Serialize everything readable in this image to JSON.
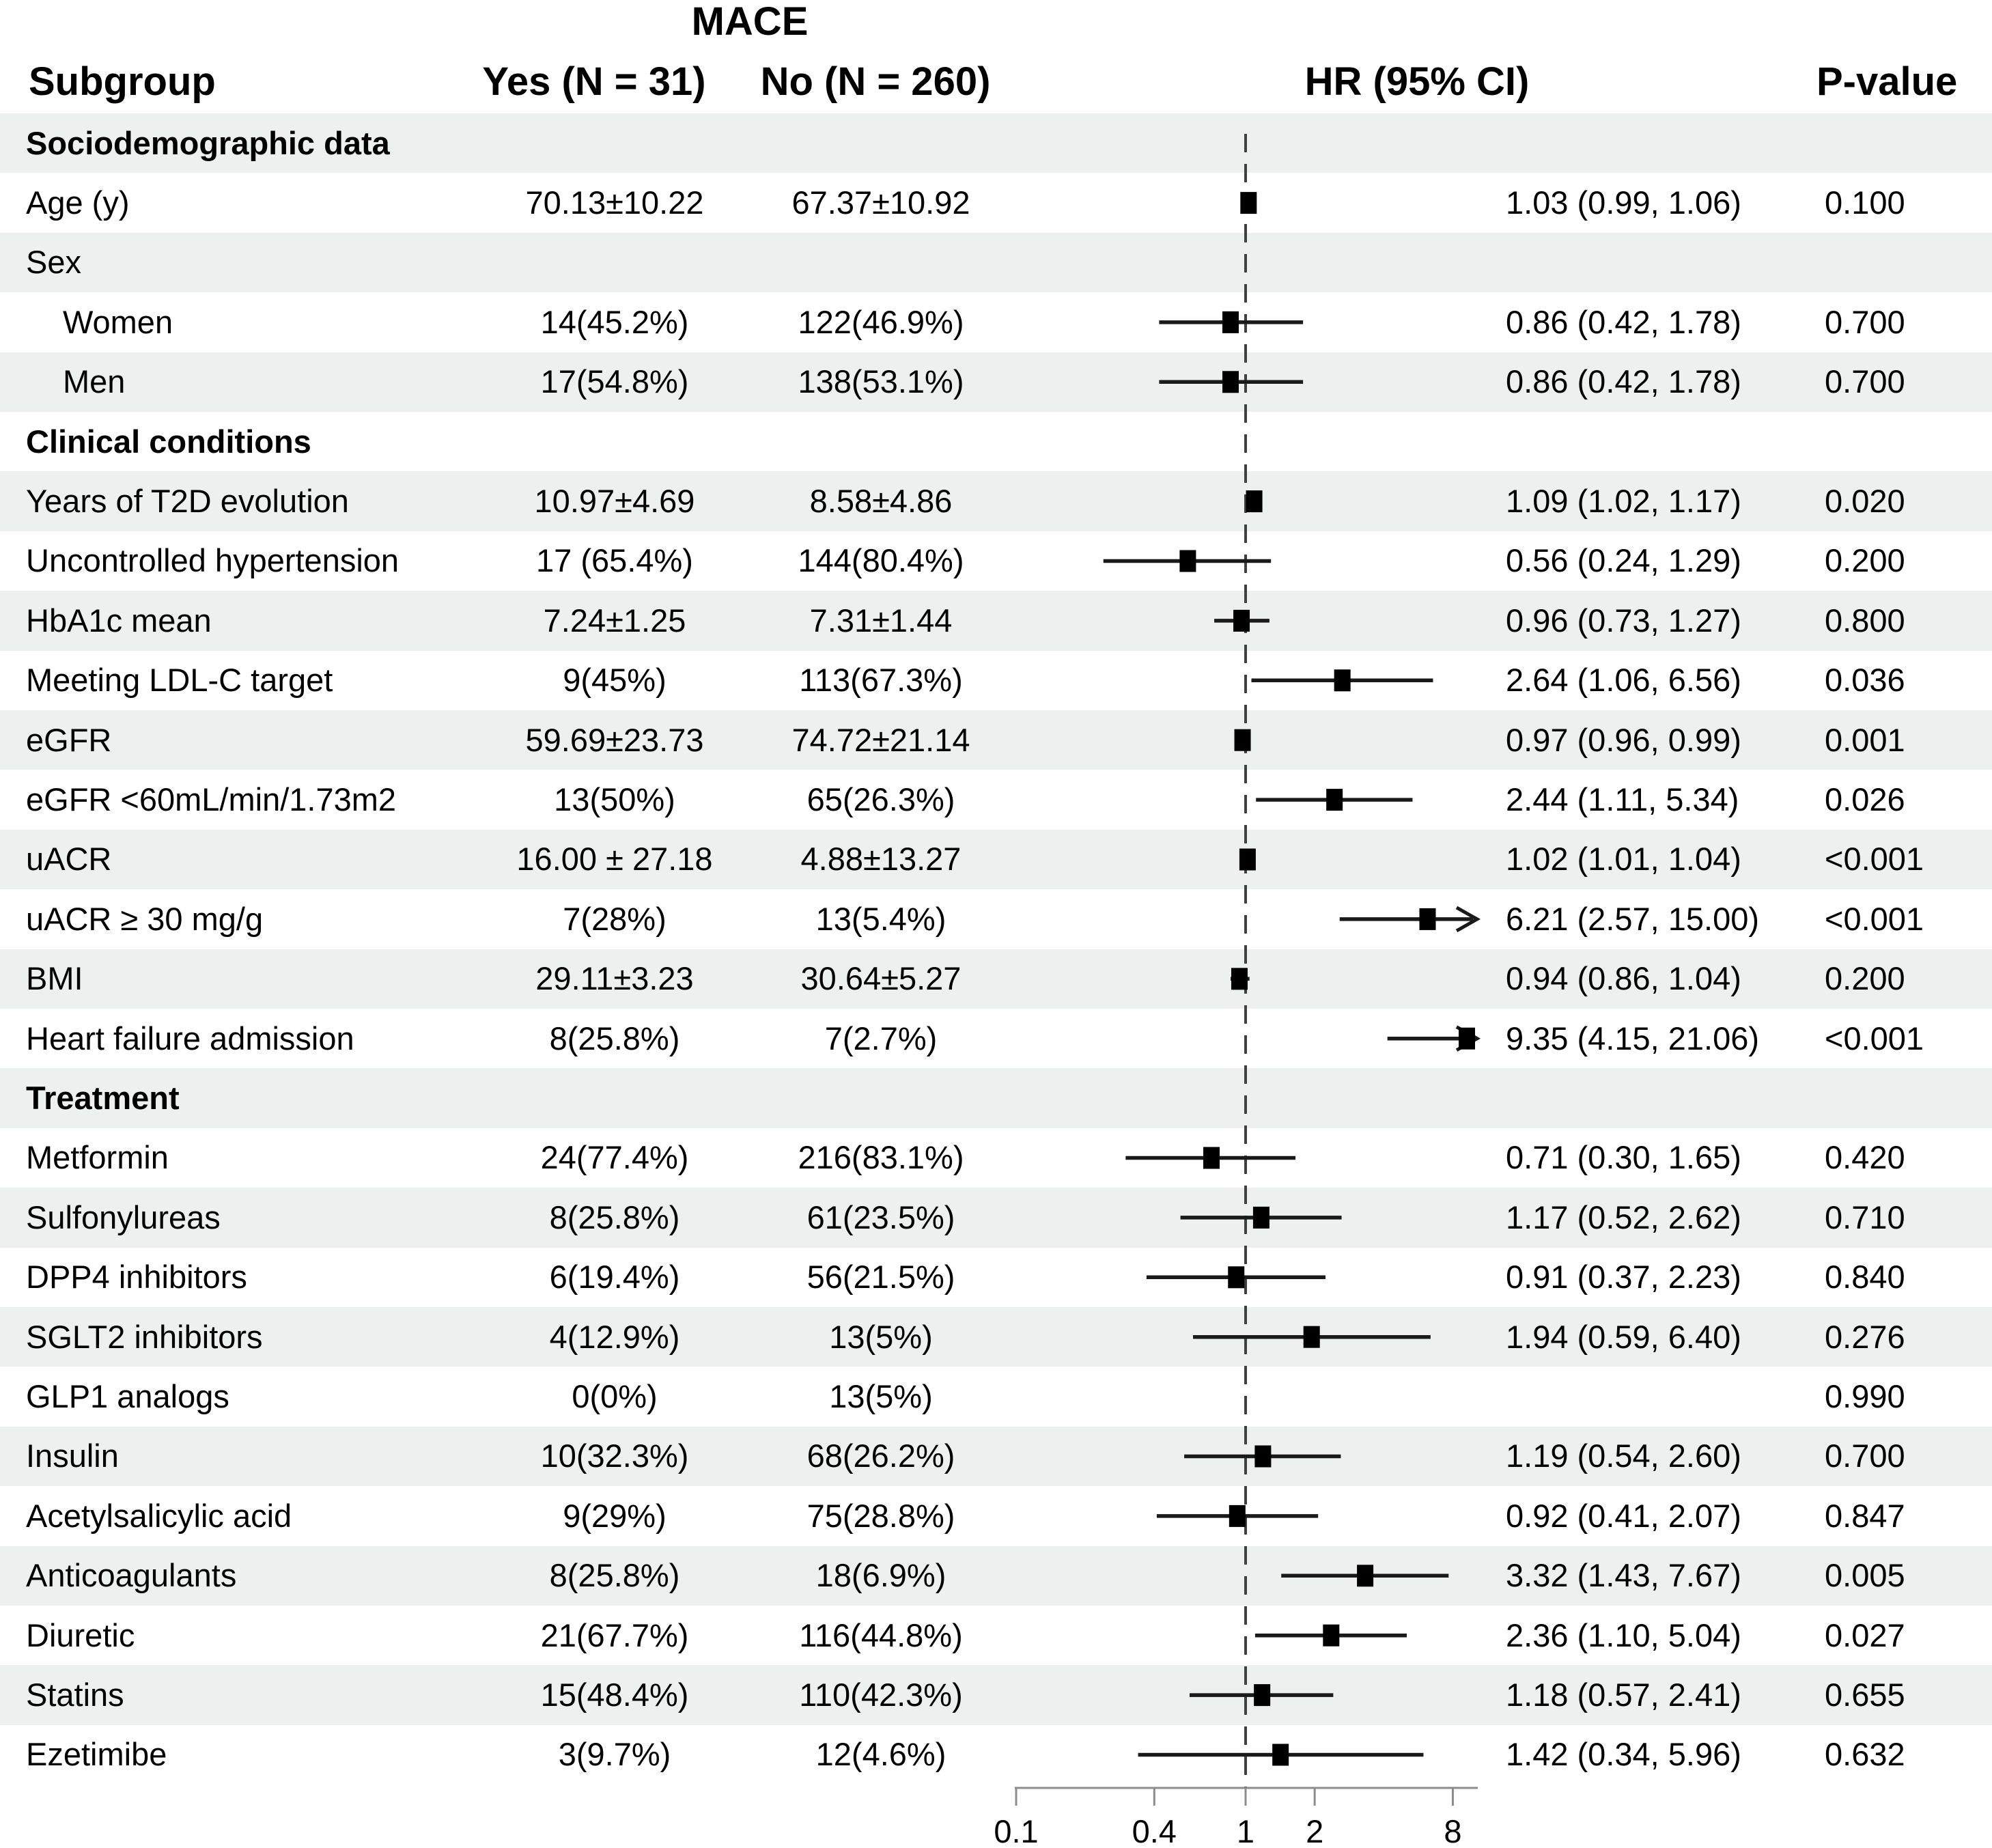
{
  "title": "MACE",
  "columns": {
    "subgroup": "Subgroup",
    "yes": "Yes (N = 31)",
    "no": "No (N = 260)",
    "hr": "HR (95% CI)",
    "p": "P-value"
  },
  "colors": {
    "stripe": "#edf0ee",
    "marker": "#000000",
    "ci_line": "#1a1a1a",
    "axis": "#8c8c8c",
    "ref_line": "#404040",
    "text": "#000000"
  },
  "chart_data": {
    "type": "forest",
    "title": "MACE",
    "x_axis": {
      "scale": "log",
      "ticks": [
        0.1,
        0.4,
        1,
        2,
        8
      ],
      "tick_labels": [
        "0.1",
        "0.4",
        "1",
        "2",
        "8"
      ],
      "range": [
        0.1,
        8.7
      ],
      "ref_line": 1
    },
    "rows": [
      {
        "label": "Sociodemographic data",
        "style": "section",
        "indent": false,
        "yes": "",
        "no": "",
        "hr": null,
        "lo": null,
        "hi": null,
        "hr_text": "",
        "p": ""
      },
      {
        "label": "Age (y)",
        "style": "plain",
        "indent": false,
        "yes": "70.13±10.22",
        "no": "67.37±10.92",
        "hr": 1.03,
        "lo": 0.99,
        "hi": 1.06,
        "hr_text": "1.03 (0.99, 1.06)",
        "p": "0.100"
      },
      {
        "label": "Sex",
        "style": "plain",
        "indent": false,
        "yes": "",
        "no": "",
        "hr": null,
        "lo": null,
        "hi": null,
        "hr_text": "",
        "p": ""
      },
      {
        "label": "Women",
        "style": "plain",
        "indent": true,
        "yes": "14(45.2%)",
        "no": "122(46.9%)",
        "hr": 0.86,
        "lo": 0.42,
        "hi": 1.78,
        "hr_text": "0.86 (0.42, 1.78)",
        "p": "0.700"
      },
      {
        "label": "Men",
        "style": "plain",
        "indent": true,
        "yes": "17(54.8%)",
        "no": "138(53.1%)",
        "hr": 0.86,
        "lo": 0.42,
        "hi": 1.78,
        "hr_text": "0.86 (0.42, 1.78)",
        "p": "0.700"
      },
      {
        "label": "Clinical conditions",
        "style": "section",
        "indent": false,
        "yes": "",
        "no": "",
        "hr": null,
        "lo": null,
        "hi": null,
        "hr_text": "",
        "p": ""
      },
      {
        "label": "Years of T2D evolution",
        "style": "plain",
        "indent": false,
        "yes": "10.97±4.69",
        "no": "8.58±4.86",
        "hr": 1.09,
        "lo": 1.02,
        "hi": 1.17,
        "hr_text": "1.09 (1.02, 1.17)",
        "p": "0.020"
      },
      {
        "label": "Uncontrolled hypertension",
        "style": "plain",
        "indent": false,
        "yes": "17 (65.4%)",
        "no": "144(80.4%)",
        "hr": 0.56,
        "lo": 0.24,
        "hi": 1.29,
        "hr_text": "0.56 (0.24, 1.29)",
        "p": "0.200"
      },
      {
        "label": "HbA1c mean",
        "style": "plain",
        "indent": false,
        "yes": "7.24±1.25",
        "no": "7.31±1.44",
        "hr": 0.96,
        "lo": 0.73,
        "hi": 1.27,
        "hr_text": "0.96 (0.73, 1.27)",
        "p": "0.800"
      },
      {
        "label": "Meeting LDL-C target",
        "style": "plain",
        "indent": false,
        "yes": "9(45%)",
        "no": "113(67.3%)",
        "hr": 2.64,
        "lo": 1.06,
        "hi": 6.56,
        "hr_text": "2.64 (1.06, 6.56)",
        "p": "0.036"
      },
      {
        "label": "eGFR",
        "style": "plain",
        "indent": false,
        "yes": "59.69±23.73",
        "no": "74.72±21.14",
        "hr": 0.97,
        "lo": 0.96,
        "hi": 0.99,
        "hr_text": "0.97 (0.96, 0.99)",
        "p": "0.001"
      },
      {
        "label": "eGFR <60mL/min/1.73m2",
        "style": "plain",
        "indent": false,
        "yes": "13(50%)",
        "no": "65(26.3%)",
        "hr": 2.44,
        "lo": 1.11,
        "hi": 5.34,
        "hr_text": "2.44 (1.11, 5.34)",
        "p": "0.026"
      },
      {
        "label": "uACR",
        "style": "plain",
        "indent": false,
        "yes": "16.00 ± 27.18",
        "no": "4.88±13.27",
        "hr": 1.02,
        "lo": 1.01,
        "hi": 1.04,
        "hr_text": "1.02 (1.01, 1.04)",
        "p": "<0.001"
      },
      {
        "label": "uACR ≥ 30 mg/g",
        "style": "plain",
        "indent": false,
        "yes": "7(28%)",
        "no": "13(5.4%)",
        "hr": 6.21,
        "lo": 2.57,
        "hi": 15.0,
        "hr_text": "6.21 (2.57, 15.00)",
        "p": "<0.001"
      },
      {
        "label": "BMI",
        "style": "plain",
        "indent": false,
        "yes": "29.11±3.23",
        "no": "30.64±5.27",
        "hr": 0.94,
        "lo": 0.86,
        "hi": 1.04,
        "hr_text": "0.94 (0.86, 1.04)",
        "p": "0.200"
      },
      {
        "label": "Heart failure admission",
        "style": "plain",
        "indent": false,
        "yes": "8(25.8%)",
        "no": "7(2.7%)",
        "hr": 9.35,
        "lo": 4.15,
        "hi": 21.06,
        "hr_text": "9.35 (4.15, 21.06)",
        "p": "<0.001"
      },
      {
        "label": "Treatment",
        "style": "section",
        "indent": false,
        "yes": "",
        "no": "",
        "hr": null,
        "lo": null,
        "hi": null,
        "hr_text": "",
        "p": ""
      },
      {
        "label": "Metformin",
        "style": "plain",
        "indent": false,
        "yes": "24(77.4%)",
        "no": "216(83.1%)",
        "hr": 0.71,
        "lo": 0.3,
        "hi": 1.65,
        "hr_text": "0.71 (0.30, 1.65)",
        "p": "0.420"
      },
      {
        "label": "Sulfonylureas",
        "style": "plain",
        "indent": false,
        "yes": "8(25.8%)",
        "no": "61(23.5%)",
        "hr": 1.17,
        "lo": 0.52,
        "hi": 2.62,
        "hr_text": "1.17 (0.52, 2.62)",
        "p": "0.710"
      },
      {
        "label": "DPP4 inhibitors",
        "style": "plain",
        "indent": false,
        "yes": "6(19.4%)",
        "no": "56(21.5%)",
        "hr": 0.91,
        "lo": 0.37,
        "hi": 2.23,
        "hr_text": "0.91 (0.37, 2.23)",
        "p": "0.840"
      },
      {
        "label": "SGLT2 inhibitors",
        "style": "plain",
        "indent": false,
        "yes": "4(12.9%)",
        "no": "13(5%)",
        "hr": 1.94,
        "lo": 0.59,
        "hi": 6.4,
        "hr_text": "1.94 (0.59, 6.40)",
        "p": "0.276"
      },
      {
        "label": "GLP1 analogs",
        "style": "plain",
        "indent": false,
        "yes": "0(0%)",
        "no": "13(5%)",
        "hr": null,
        "lo": null,
        "hi": null,
        "hr_text": "",
        "p": "0.990"
      },
      {
        "label": "Insulin",
        "style": "plain",
        "indent": false,
        "yes": "10(32.3%)",
        "no": "68(26.2%)",
        "hr": 1.19,
        "lo": 0.54,
        "hi": 2.6,
        "hr_text": "1.19 (0.54, 2.60)",
        "p": "0.700"
      },
      {
        "label": "Acetylsalicylic acid",
        "style": "plain",
        "indent": false,
        "yes": "9(29%)",
        "no": "75(28.8%)",
        "hr": 0.92,
        "lo": 0.41,
        "hi": 2.07,
        "hr_text": "0.92 (0.41, 2.07)",
        "p": "0.847"
      },
      {
        "label": "Anticoagulants",
        "style": "plain",
        "indent": false,
        "yes": "8(25.8%)",
        "no": "18(6.9%)",
        "hr": 3.32,
        "lo": 1.43,
        "hi": 7.67,
        "hr_text": "3.32 (1.43, 7.67)",
        "p": "0.005"
      },
      {
        "label": "Diuretic",
        "style": "plain",
        "indent": false,
        "yes": "21(67.7%)",
        "no": "116(44.8%)",
        "hr": 2.36,
        "lo": 1.1,
        "hi": 5.04,
        "hr_text": "2.36 (1.10, 5.04)",
        "p": "0.027"
      },
      {
        "label": "Statins",
        "style": "plain",
        "indent": false,
        "yes": "15(48.4%)",
        "no": "110(42.3%)",
        "hr": 1.18,
        "lo": 0.57,
        "hi": 2.41,
        "hr_text": "1.18 (0.57, 2.41)",
        "p": "0.655"
      },
      {
        "label": "Ezetimibe",
        "style": "plain",
        "indent": false,
        "yes": "3(9.7%)",
        "no": "12(4.6%)",
        "hr": 1.42,
        "lo": 0.34,
        "hi": 5.96,
        "hr_text": "1.42 (0.34, 5.96)",
        "p": "0.632"
      }
    ]
  }
}
